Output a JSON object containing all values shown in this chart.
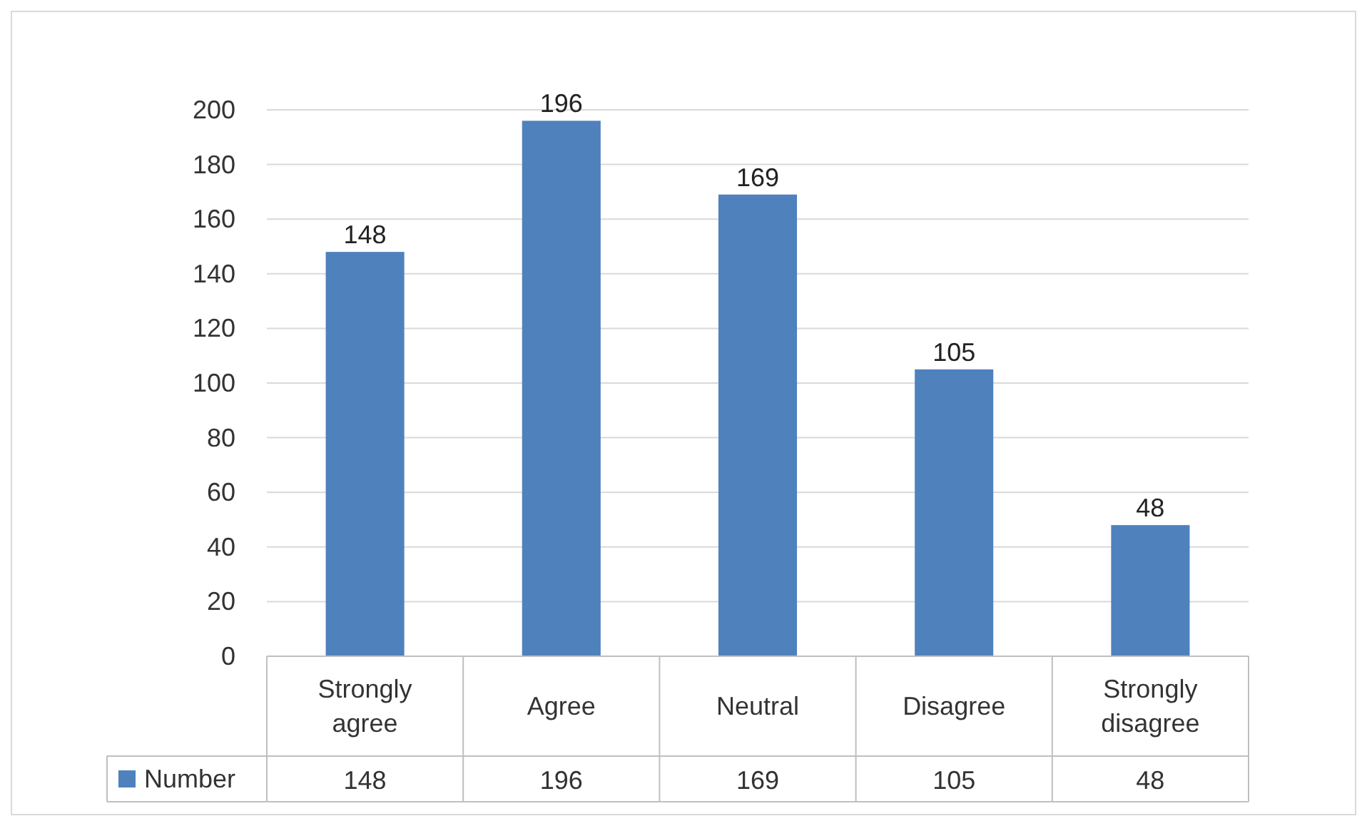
{
  "chart_data": {
    "type": "bar",
    "categories": [
      "Strongly agree",
      "Agree",
      "Neutral",
      "Disagree",
      "Strongly disagree"
    ],
    "series": [
      {
        "name": "Number",
        "color": "#4f81bd",
        "values": [
          148,
          196,
          169,
          105,
          48
        ],
        "value_labels": [
          "148",
          "196",
          "169",
          "105",
          "48"
        ]
      }
    ],
    "annotations": [
      "148",
      "196",
      "169",
      "105",
      "48"
    ],
    "ylim": [
      0,
      200
    ],
    "yticks": [
      0,
      20,
      40,
      60,
      80,
      100,
      120,
      140,
      160,
      180,
      200
    ],
    "grid": "y",
    "legend": "bottom left"
  }
}
